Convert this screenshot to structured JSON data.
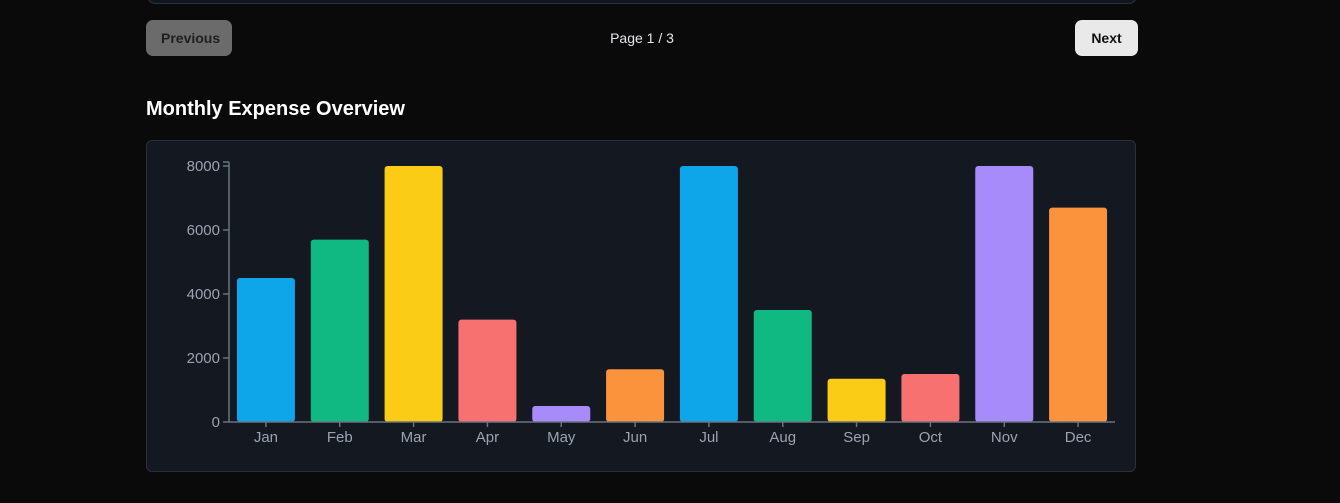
{
  "pagination": {
    "previous_label": "Previous",
    "next_label": "Next",
    "page_indicator": "Page 1 / 3"
  },
  "section": {
    "title": "Monthly Expense Overview"
  },
  "chart_data": {
    "type": "bar",
    "title": "",
    "xlabel": "",
    "ylabel": "",
    "categories": [
      "Jan",
      "Feb",
      "Mar",
      "Apr",
      "May",
      "Jun",
      "Jul",
      "Aug",
      "Sep",
      "Oct",
      "Nov",
      "Dec"
    ],
    "values": [
      4500,
      5700,
      8000,
      3200,
      500,
      1650,
      8000,
      3500,
      1350,
      1500,
      8000,
      6700
    ],
    "colors": [
      "#0ea5e9",
      "#10b981",
      "#facc15",
      "#f87171",
      "#a78bfa",
      "#fb923c",
      "#0ea5e9",
      "#10b981",
      "#facc15",
      "#f87171",
      "#a78bfa",
      "#fb923c"
    ],
    "ylim": [
      0,
      8000
    ],
    "yticks": [
      0,
      2000,
      4000,
      6000,
      8000
    ],
    "grid": false,
    "legend": "none"
  }
}
